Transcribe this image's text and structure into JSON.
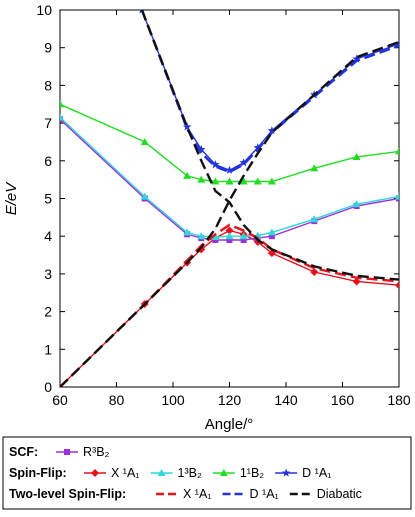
{
  "chart_data": {
    "type": "line",
    "xlabel": "Angle/°",
    "ylabel": "E/eV",
    "xlim": [
      60,
      180
    ],
    "ylim": [
      0,
      10
    ],
    "xticks": [
      60,
      80,
      100,
      120,
      140,
      160,
      180
    ],
    "yticks": [
      0,
      1,
      2,
      3,
      4,
      5,
      6,
      7,
      8,
      9,
      10
    ],
    "grid": false,
    "series": [
      {
        "name": "R³B₂",
        "group": "SCF",
        "color": "#9b30d9",
        "dash": "solid",
        "marker": "square",
        "x": [
          60,
          90,
          105,
          110,
          115,
          120,
          125,
          130,
          135,
          150,
          165,
          180
        ],
        "y": [
          7.1,
          5.0,
          4.05,
          3.95,
          3.9,
          3.9,
          3.9,
          3.95,
          4.0,
          4.4,
          4.8,
          5.0
        ]
      },
      {
        "name": "X ¹A₁",
        "group": "Spin-Flip",
        "color": "#e8111b",
        "dash": "solid",
        "marker": "diamond",
        "x": [
          60,
          90,
          105,
          110,
          115,
          120,
          125,
          130,
          135,
          150,
          165,
          180
        ],
        "y": [
          0.0,
          2.2,
          3.3,
          3.65,
          3.95,
          4.15,
          4.05,
          3.85,
          3.55,
          3.05,
          2.8,
          2.7
        ]
      },
      {
        "name": "1³B₂",
        "group": "Spin-Flip",
        "color": "#30d8d8",
        "dash": "solid",
        "marker": "triangle",
        "x": [
          60,
          90,
          105,
          110,
          115,
          120,
          125,
          130,
          135,
          150,
          165,
          180
        ],
        "y": [
          7.15,
          5.05,
          4.1,
          4.0,
          3.98,
          4.0,
          4.0,
          4.02,
          4.1,
          4.45,
          4.85,
          5.05
        ]
      },
      {
        "name": "1¹B₂",
        "group": "Spin-Flip",
        "color": "#22dd22",
        "dash": "solid",
        "marker": "triangle",
        "x": [
          60,
          90,
          105,
          110,
          115,
          120,
          125,
          130,
          135,
          150,
          165,
          180
        ],
        "y": [
          7.5,
          6.5,
          5.6,
          5.5,
          5.45,
          5.45,
          5.45,
          5.45,
          5.45,
          5.8,
          6.1,
          6.25
        ]
      },
      {
        "name": "D ¹A₁",
        "group": "Spin-Flip",
        "color": "#2233dd",
        "dash": "solid",
        "marker": "star",
        "x": [
          89,
          105,
          110,
          115,
          120,
          125,
          130,
          135,
          150,
          165,
          180
        ],
        "y": [
          10.0,
          6.9,
          6.3,
          5.9,
          5.75,
          5.95,
          6.35,
          6.8,
          7.75,
          8.7,
          9.1
        ]
      },
      {
        "name": "X ¹A₁",
        "group": "Two-level Spin-Flip",
        "color": "#e8111b",
        "dash": "dashed",
        "marker": "none",
        "x": [
          60,
          90,
          105,
          110,
          115,
          120,
          125,
          130,
          135,
          150,
          165,
          180
        ],
        "y": [
          0.0,
          2.2,
          3.35,
          3.75,
          4.05,
          4.3,
          4.15,
          3.95,
          3.65,
          3.15,
          2.9,
          2.8
        ]
      },
      {
        "name": "D ¹A₁",
        "group": "Two-level Spin-Flip",
        "color": "#2233dd",
        "dash": "dashed",
        "marker": "none",
        "x": [
          89,
          105,
          110,
          115,
          120,
          125,
          130,
          135,
          150,
          165,
          180
        ],
        "y": [
          10.0,
          6.85,
          6.2,
          5.85,
          5.7,
          5.9,
          6.3,
          6.75,
          7.7,
          8.65,
          9.05
        ]
      },
      {
        "name": "Diabatic",
        "group": "Two-level Spin-Flip",
        "color": "#111111",
        "dash": "dashed",
        "marker": "none",
        "x": [
          60,
          90,
          105,
          110,
          115,
          120,
          125,
          130,
          135,
          150,
          165,
          180
        ],
        "y": [
          0.0,
          2.2,
          3.3,
          3.7,
          4.2,
          4.95,
          5.6,
          6.2,
          6.75,
          7.75,
          8.75,
          9.15
        ]
      },
      {
        "name": "Diabatic",
        "group": "Two-level Spin-Flip",
        "color": "#111111",
        "dash": "dashed",
        "marker": "none",
        "legend": false,
        "x": [
          89,
          105,
          110,
          115,
          120,
          125,
          130,
          135,
          150,
          165,
          180
        ],
        "y": [
          10.0,
          6.9,
          6.0,
          5.2,
          4.9,
          4.3,
          3.9,
          3.65,
          3.2,
          2.95,
          2.85
        ]
      }
    ],
    "legend": {
      "placement": "bottom",
      "rows": [
        {
          "label": "SCF:",
          "items": [
            0
          ]
        },
        {
          "label": "Spin-Flip:",
          "items": [
            1,
            2,
            3,
            4
          ]
        },
        {
          "label": "Two-level Spin-Flip:",
          "items": [
            5,
            6,
            7
          ]
        }
      ]
    }
  }
}
